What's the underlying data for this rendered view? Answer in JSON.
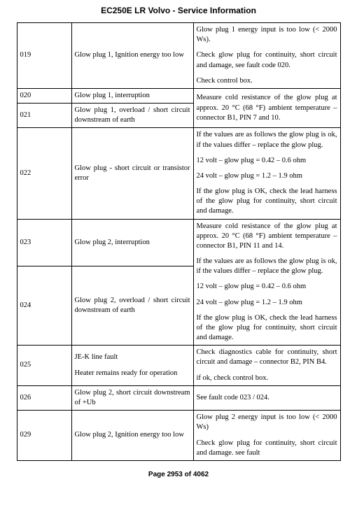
{
  "title": "EC250E LR Volvo - Service Information",
  "footer": "Page 2953 of 4062",
  "rows": [
    {
      "code": "019",
      "desc": [
        "Glow plug 1, Ignition energy too low"
      ],
      "action": [
        "Glow plug 1 energy input is too low (< 2000 Ws).",
        "Check glow plug for continuity, short circuit and damage, see fault code 020.",
        "Check control box."
      ]
    },
    {
      "code": "020",
      "desc": [
        "Glow plug 1, interruption"
      ],
      "action_rowspan": 2,
      "action": [
        "Measure cold resistance of the glow plug at approx. 20 °C (68 °F) ambient temperature – connector B1, PIN 7 and 10."
      ]
    },
    {
      "code": "021",
      "desc": [
        "Glow plug 1, overload / short circuit downstream of earth"
      ]
    },
    {
      "code": "022",
      "desc": [
        "Glow plug - short circuit or transistor error"
      ],
      "action": [
        "If the values are as follows the glow plug is ok, if the values differ – replace the glow plug.",
        "12 volt – glow plug = 0.42 – 0.6 ohm",
        "24 volt – glow plug = 1.2 – 1.9 ohm",
        "If the glow plug is OK, check the lead harness of the glow plug for continuity, short circuit and damage."
      ]
    },
    {
      "code": "023",
      "desc": [
        "Glow plug 2, interruption"
      ],
      "action_rowspan": 2,
      "action": [
        "Measure cold resistance of the glow plug at approx. 20 °C (68 °F) ambient temperature – connector B1, PIN 11 and 14.",
        "If the values are as follows the glow plug is ok, if the values differ – replace the glow plug.",
        "12 volt – glow plug = 0.42 – 0.6 ohm",
        "24 volt – glow plug = 1.2 – 1.9 ohm",
        "If the glow plug is OK, check the lead harness of the glow plug for continuity, short circuit and damage."
      ]
    },
    {
      "code": "024",
      "desc": [
        "Glow plug 2, overload / short circuit downstream of earth"
      ]
    },
    {
      "code": "025",
      "desc": [
        "JE-K line fault",
        "Heater remains ready for operation"
      ],
      "action": [
        "Check diagnostics cable for continuity, short circuit and damage – connector B2, PIN B4.",
        "if ok, check control box."
      ]
    },
    {
      "code": "026",
      "desc": [
        "Glow plug 2, short circuit downstream of +Ub"
      ],
      "action": [
        "See fault code 023 / 024."
      ]
    },
    {
      "code": "029",
      "desc": [
        "Glow plug 2, Ignition energy too low"
      ],
      "action": [
        "Glow plug 2 energy input is too low (< 2000 Ws)",
        "Check glow plug for continuity, short circuit and damage. see fault"
      ]
    }
  ]
}
